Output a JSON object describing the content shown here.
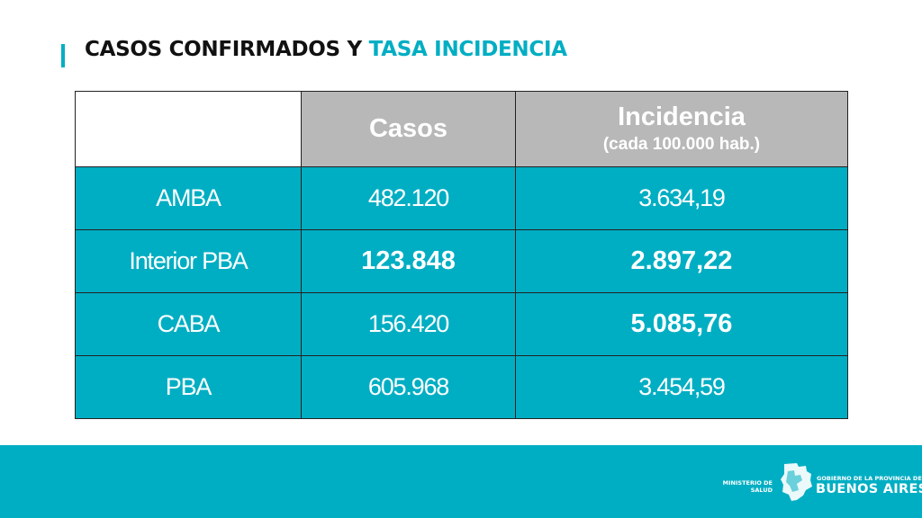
{
  "title": {
    "part1": "CASOS CONFIRMADOS Y",
    "part2": "TASA INCIDENCIA"
  },
  "table": {
    "header": {
      "casos": "Casos",
      "incidencia": "Incidencia",
      "incidencia_sub": "(cada 100.000 hab.)"
    },
    "rows": [
      {
        "region": "AMBA",
        "casos": "482.120",
        "incidencia": "3.634,19"
      },
      {
        "region": "Interior PBA",
        "casos": "123.848",
        "incidencia": "2.897,22"
      },
      {
        "region": "CABA",
        "casos": "156.420",
        "incidencia": "5.085,76"
      },
      {
        "region": "PBA",
        "casos": "605.968",
        "incidencia": "3.454,59"
      }
    ]
  },
  "footer": {
    "ministerio": "MINISTERIO DE SALUD",
    "gobierno": "GOBIERNO DE LA PROVINCIA DE",
    "provincia": "BUENOS AIRES"
  },
  "colors": {
    "accent": "#00aec3",
    "header_gray": "#b8b8b8",
    "text_dark": "#111111"
  }
}
